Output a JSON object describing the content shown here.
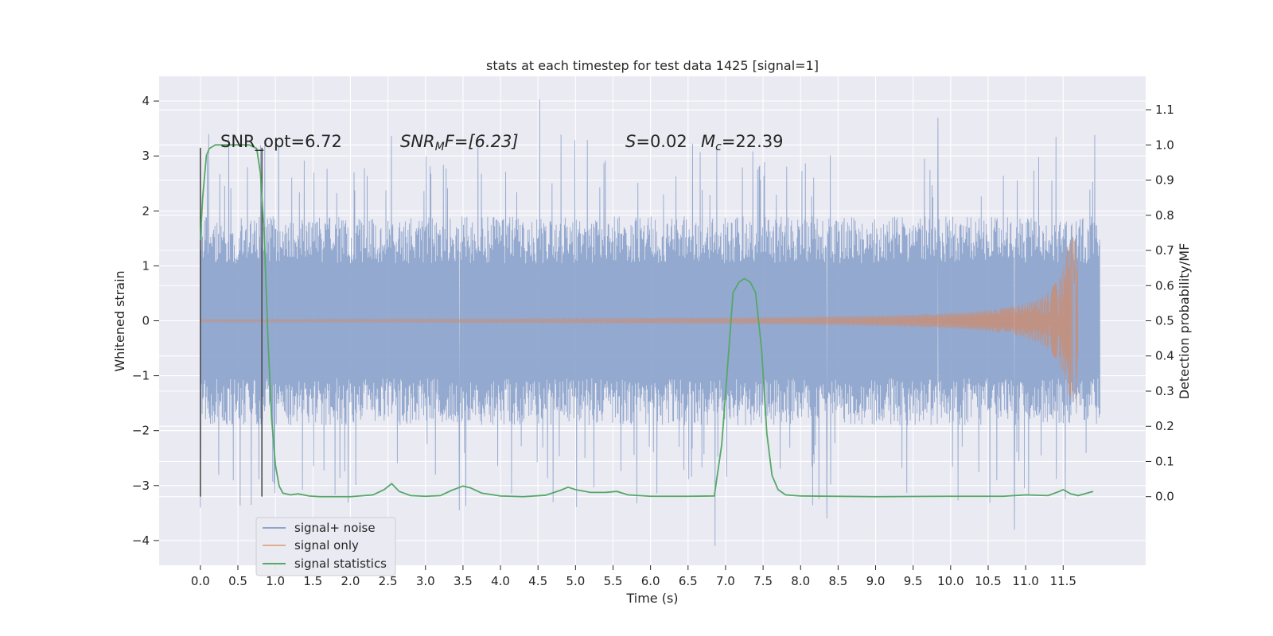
{
  "chart_data": {
    "type": "line",
    "title": "stats at each timestep for test data 1425 [signal=1]",
    "xlabel": "Time (s)",
    "ylabel_left": "Whitened strain",
    "ylabel_right": "Detection probability/MF",
    "xlim": [
      -0.55,
      12.6
    ],
    "ylim_left": [
      -4.45,
      4.45
    ],
    "ylim_right": [
      -0.195,
      1.195
    ],
    "x_ticks": [
      0.0,
      0.5,
      1.0,
      1.5,
      2.0,
      2.5,
      3.0,
      3.5,
      4.0,
      4.5,
      5.0,
      5.5,
      6.0,
      6.5,
      7.0,
      7.5,
      8.0,
      8.5,
      9.0,
      9.5,
      10.0,
      10.5,
      11.0,
      11.5
    ],
    "x_tick_labels": [
      "0.0",
      "0.5",
      "1.0",
      "1.5",
      "2.0",
      "2.5",
      "3.0",
      "3.5",
      "4.0",
      "4.5",
      "5.0",
      "5.5",
      "6.0",
      "6.5",
      "7.0",
      "7.5",
      "8.0",
      "8.5",
      "9.0",
      "9.5",
      "10.0",
      "10.5",
      "11.0",
      "11.5"
    ],
    "y_left_ticks": [
      -4,
      -3,
      -2,
      -1,
      0,
      1,
      2,
      3,
      4
    ],
    "y_left_tick_labels": [
      "−4",
      "−3",
      "−2",
      "−1",
      "0",
      "1",
      "2",
      "3",
      "4"
    ],
    "y_right_ticks": [
      0.0,
      0.1,
      0.2,
      0.3,
      0.4,
      0.5,
      0.6,
      0.7,
      0.8,
      0.9,
      1.0,
      1.1
    ],
    "y_right_tick_labels": [
      "0.0",
      "0.1",
      "0.2",
      "0.3",
      "0.4",
      "0.5",
      "0.6",
      "0.7",
      "0.8",
      "0.9",
      "1.0",
      "1.1"
    ],
    "grid": true,
    "legend_position": "lower-left",
    "colors": {
      "background": "#eaeaf2",
      "grid": "#ffffff",
      "noise": "#8fa5cc",
      "signal": "#dd8452",
      "stats": "#55a868",
      "window": "#4d4d4d"
    },
    "series": [
      {
        "name": "signal+ noise",
        "axis": "left",
        "x_range": [
          0.0,
          11.99
        ],
        "envelope_typical": [
          -1.9,
          1.9
        ],
        "extremes": [
          {
            "x": 0.0,
            "y": -3.4
          },
          {
            "x": 4.52,
            "y": 4.03
          },
          {
            "x": 6.86,
            "y": -4.1
          },
          {
            "x": 8.35,
            "y": -3.6
          },
          {
            "x": 10.85,
            "y": -3.8
          },
          {
            "x": 9.83,
            "y": 3.7
          },
          {
            "x": 3.45,
            "y": -3.45
          }
        ]
      },
      {
        "name": "signal only",
        "axis": "left",
        "x_range": [
          0.0,
          11.7
        ],
        "peak_amplitude": 1.55,
        "merger_time": 11.7
      },
      {
        "name": "signal statistics",
        "axis": "right",
        "x": [
          0.0,
          0.03,
          0.08,
          0.12,
          0.2,
          0.3,
          0.5,
          0.65,
          0.75,
          0.8,
          0.85,
          0.9,
          0.95,
          1.0,
          1.05,
          1.1,
          1.2,
          1.3,
          1.45,
          1.6,
          2.0,
          2.3,
          2.45,
          2.55,
          2.65,
          2.8,
          3.0,
          3.2,
          3.35,
          3.5,
          3.6,
          3.75,
          4.0,
          4.3,
          4.6,
          4.8,
          4.9,
          5.0,
          5.2,
          5.4,
          5.55,
          5.7,
          6.0,
          6.5,
          6.85,
          6.95,
          7.02,
          7.1,
          7.18,
          7.25,
          7.33,
          7.4,
          7.48,
          7.55,
          7.62,
          7.7,
          7.8,
          8.0,
          9.0,
          10.0,
          10.7,
          11.0,
          11.3,
          11.45,
          11.5,
          11.6,
          11.7,
          11.9
        ],
        "values": [
          0.73,
          0.85,
          0.97,
          0.99,
          1.0,
          1.0,
          1.0,
          1.0,
          0.99,
          0.92,
          0.75,
          0.45,
          0.22,
          0.09,
          0.03,
          0.01,
          0.005,
          0.008,
          0.002,
          0.0,
          0.0,
          0.005,
          0.02,
          0.037,
          0.015,
          0.003,
          0.001,
          0.003,
          0.018,
          0.03,
          0.025,
          0.01,
          0.002,
          0.0,
          0.004,
          0.018,
          0.027,
          0.02,
          0.012,
          0.012,
          0.015,
          0.005,
          0.001,
          0.001,
          0.002,
          0.15,
          0.35,
          0.58,
          0.61,
          0.62,
          0.61,
          0.58,
          0.42,
          0.18,
          0.06,
          0.02,
          0.005,
          0.002,
          0.0,
          0.001,
          0.001,
          0.005,
          0.003,
          0.015,
          0.02,
          0.008,
          0.003,
          0.015
        ]
      }
    ],
    "window_lines_x": [
      0.0,
      0.82
    ],
    "window_lines_y": [
      -3.2,
      3.15
    ],
    "annotations": {
      "snr_opt": "SNR_opt=6.72",
      "snr_mf_base": "SNR",
      "snr_mf_sub": "M",
      "snr_mf_tail": "F=[6.23]",
      "s_var": "S",
      "s_val": "=0.02",
      "mc_var": "M",
      "mc_sub": "c",
      "mc_val": "=22.39"
    }
  }
}
